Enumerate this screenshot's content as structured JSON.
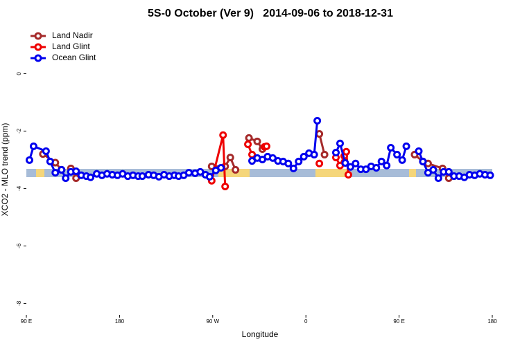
{
  "chart_data": {
    "type": "line",
    "title": "5S-0 October (Ver 9)   2014-09-06 to 2018-12-31",
    "x_label": "Longitude",
    "y_label": "XCO2 - MLO trend (ppm)",
    "xlim": [
      90,
      540
    ],
    "xticks": [
      {
        "value": 90,
        "label": "90 E"
      },
      {
        "value": 180,
        "label": "180"
      },
      {
        "value": 270,
        "label": "90 W"
      },
      {
        "value": 360,
        "label": "0"
      },
      {
        "value": 450,
        "label": "90 E"
      },
      {
        "value": 540,
        "label": "180"
      }
    ],
    "ylim": [
      -8.4,
      1.6
    ],
    "yticks": [
      -8,
      -6,
      -4,
      -2,
      0
    ],
    "legend": "top-left",
    "series": [
      {
        "name": "Land Nadir",
        "color": "#a52a2a",
        "x": [
          106,
          118,
          124,
          null,
          133,
          138,
          null,
          269,
          282,
          287,
          292,
          null,
          305,
          313,
          318,
          null,
          373,
          378,
          null,
          465,
          473,
          478,
          492,
          498
        ],
        "values": [
          -2.8,
          -3.1,
          -3.35,
          null,
          -3.3,
          -3.64,
          null,
          -3.23,
          -3.23,
          -2.92,
          -3.35,
          null,
          -2.24,
          -2.36,
          -2.63,
          null,
          -2.1,
          -2.82,
          null,
          -2.82,
          -3.06,
          -3.13,
          -3.3,
          -3.64
        ]
      },
      {
        "name": "Land Glint",
        "color": "#ee0000",
        "x": [
          269,
          280,
          282,
          null,
          304,
          308,
          null,
          320,
          322,
          null,
          373,
          null,
          389,
          393,
          397,
          399,
          401
        ],
        "values": [
          -3.73,
          -2.14,
          -3.93,
          null,
          -2.46,
          -2.82,
          null,
          -2.55,
          -2.53,
          null,
          -3.13,
          null,
          -2.92,
          -3.2,
          -2.87,
          -2.72,
          -3.52
        ]
      },
      {
        "name": "Ocean Glint",
        "color": "#0000ee",
        "x": [
          93,
          97,
          109,
          113,
          118,
          124,
          128,
          133,
          138,
          143,
          148,
          152,
          158,
          163,
          168,
          173,
          178,
          183,
          188,
          193,
          198,
          202,
          208,
          213,
          218,
          223,
          228,
          233,
          237,
          242,
          247,
          253,
          258,
          263,
          267,
          273,
          278,
          null,
          308,
          313,
          318,
          323,
          328,
          333,
          338,
          343,
          348,
          353,
          358,
          363,
          368,
          371,
          null,
          389,
          393,
          398,
          403,
          408,
          413,
          418,
          423,
          428,
          433,
          438,
          442,
          448,
          453,
          457,
          null,
          469,
          473,
          478,
          483,
          488,
          493,
          498,
          503,
          508,
          513,
          518,
          523,
          528,
          533,
          538
        ],
        "values": [
          -3.01,
          -2.53,
          -2.7,
          -3.06,
          -3.45,
          -3.35,
          -3.64,
          -3.42,
          -3.4,
          -3.54,
          -3.57,
          -3.61,
          -3.49,
          -3.54,
          -3.49,
          -3.52,
          -3.54,
          -3.49,
          -3.57,
          -3.54,
          -3.57,
          -3.57,
          -3.52,
          -3.54,
          -3.59,
          -3.52,
          -3.57,
          -3.54,
          -3.57,
          -3.54,
          -3.45,
          -3.47,
          -3.42,
          -3.52,
          -3.59,
          -3.37,
          -3.28,
          null,
          -3.04,
          -2.94,
          -2.99,
          -2.89,
          -2.94,
          -3.04,
          -3.06,
          -3.13,
          -3.3,
          -3.06,
          -2.89,
          -2.77,
          -2.82,
          -1.64,
          null,
          -2.75,
          -2.43,
          -3.11,
          -3.25,
          -3.13,
          -3.33,
          -3.33,
          -3.23,
          -3.28,
          -3.06,
          -3.2,
          -2.58,
          -2.82,
          -3.01,
          -2.53,
          null,
          -2.7,
          -3.06,
          -3.45,
          -3.35,
          -3.64,
          -3.42,
          -3.42,
          -3.57,
          -3.57,
          -3.61,
          -3.52,
          -3.54,
          -3.49,
          -3.52,
          -3.54
        ]
      }
    ]
  }
}
